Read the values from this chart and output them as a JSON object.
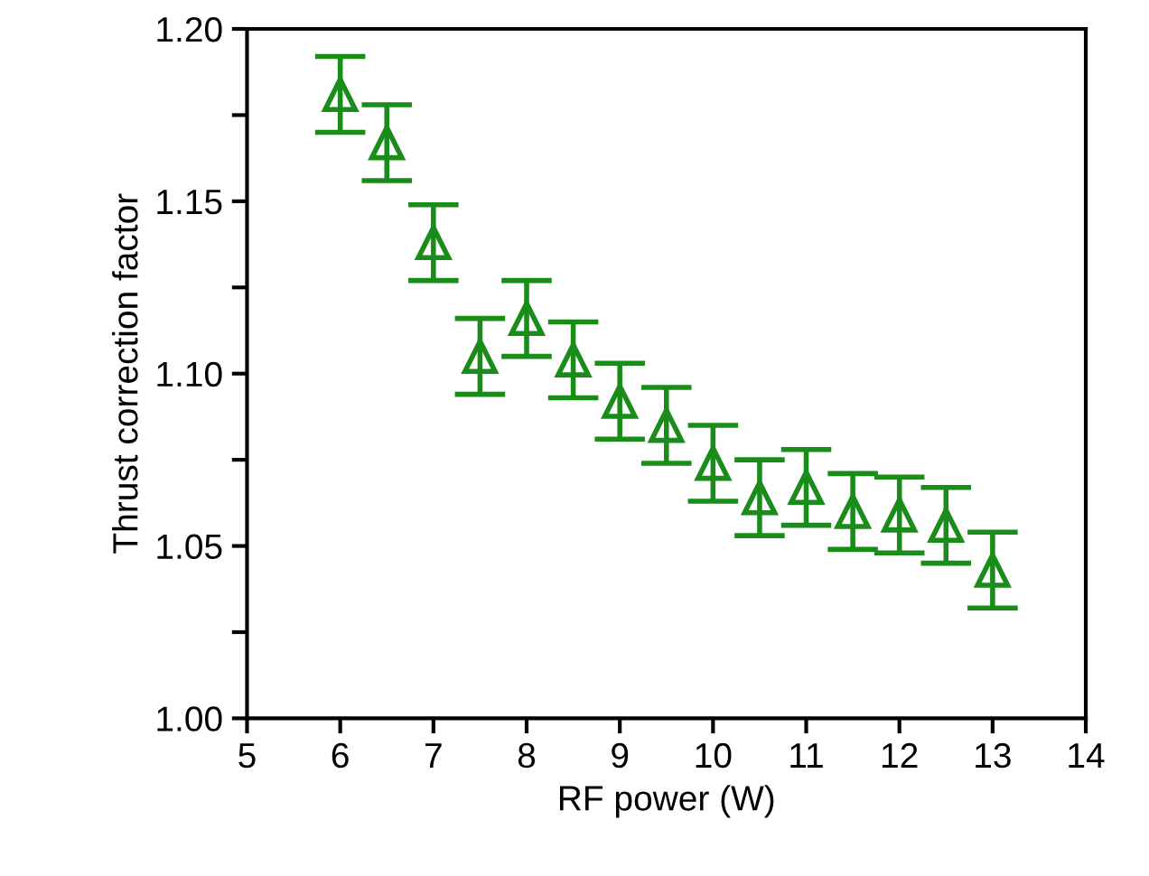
{
  "chart_data": {
    "type": "scatter",
    "xlabel": "RF power (W)",
    "ylabel": "Thrust correction factor",
    "x": [
      6,
      6.5,
      7,
      7.5,
      8,
      8.5,
      9,
      9.5,
      10,
      10.5,
      11,
      11.5,
      12,
      12.5,
      13
    ],
    "series": [
      {
        "color": "#1a8c1a",
        "values": [
          1.181,
          1.167,
          1.138,
          1.105,
          1.116,
          1.104,
          1.092,
          1.085,
          1.074,
          1.064,
          1.067,
          1.06,
          1.059,
          1.056,
          1.043
        ],
        "errors": [
          0.011,
          0.011,
          0.011,
          0.011,
          0.011,
          0.011,
          0.011,
          0.011,
          0.011,
          0.011,
          0.011,
          0.011,
          0.011,
          0.011,
          0.011
        ]
      }
    ],
    "marker": "triangle",
    "grid": false,
    "legend": false,
    "xlim": [
      5,
      14
    ],
    "xticks": [
      5,
      6,
      7,
      8,
      9,
      10,
      11,
      12,
      13,
      14
    ],
    "ylim": [
      1.0,
      1.2
    ],
    "yticks": [
      {
        "value": 1.0,
        "label": "1.00"
      },
      {
        "value": 1.025,
        "label": null
      },
      {
        "value": 1.05,
        "label": "1.05"
      },
      {
        "value": 1.075,
        "label": null
      },
      {
        "value": 1.1,
        "label": "1.10"
      },
      {
        "value": 1.125,
        "label": null
      },
      {
        "value": 1.15,
        "label": "1.15"
      },
      {
        "value": 1.175,
        "label": null
      },
      {
        "value": 1.2,
        "label": "1.20"
      }
    ]
  }
}
